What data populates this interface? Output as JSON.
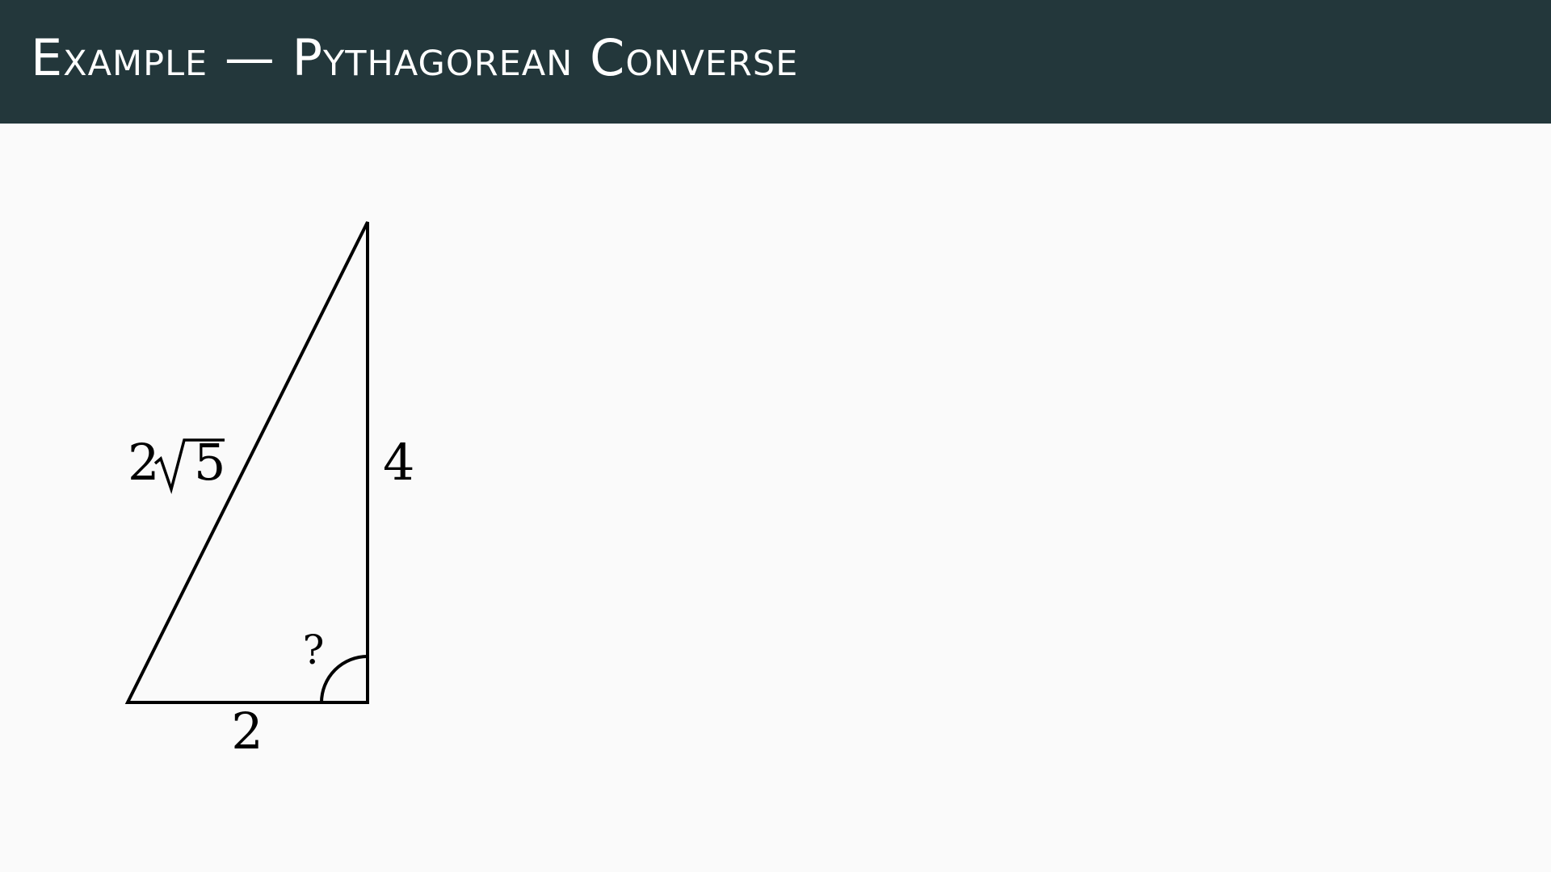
{
  "slide": {
    "title": "Example — Pythagorean Converse"
  },
  "diagram": {
    "labels": {
      "hypotenuse_coef": "2",
      "hypotenuse_radicand": "5",
      "vertical_side": "4",
      "horizontal_side": "2",
      "unknown_angle": "?"
    },
    "colors": {
      "title_bar": "#23373b",
      "title_text": "#ffffff",
      "background": "#fafafa",
      "stroke": "#000000"
    }
  }
}
